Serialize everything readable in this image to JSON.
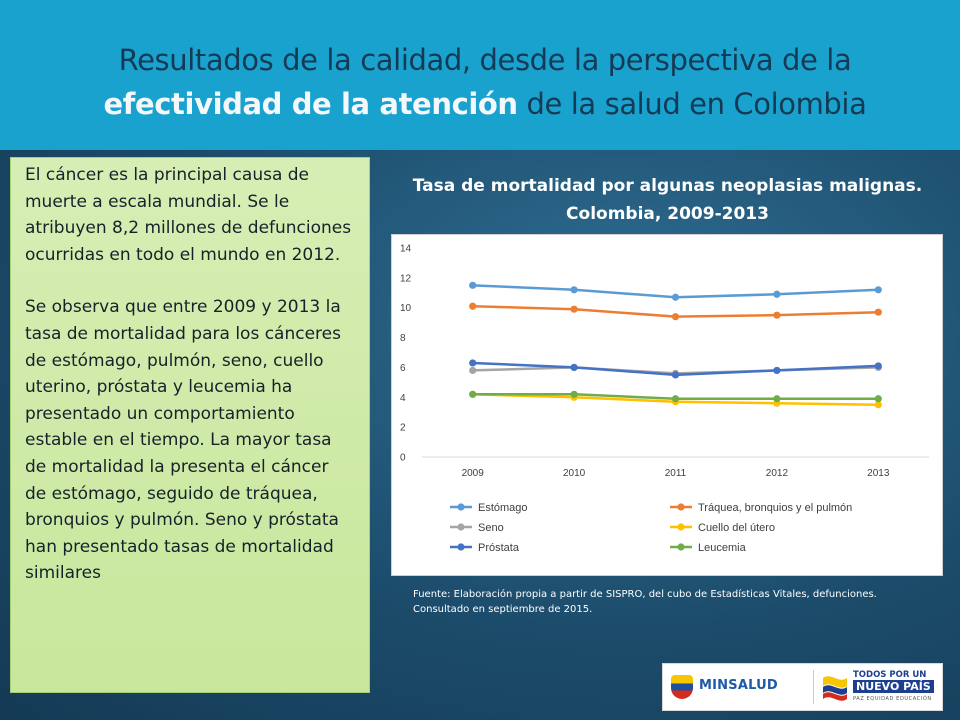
{
  "slide": {
    "title_part1": "Resultados de la calidad, desde la perspectiva de la ",
    "title_highlight": "efectividad de la atención",
    "title_part2": " de la salud en Colombia",
    "paragraph1": "El cáncer es la principal causa de muerte a escala mundial. Se le atribuyen 8,2 millones de defunciones ocurridas en todo el mundo en 2012.",
    "paragraph2": " Se observa que entre 2009 y 2013 la tasa de mortalidad para los cánceres de estómago, pulmón, seno, cuello uterino, próstata y leucemia ha presentado un comportamiento estable en el tiempo. La mayor tasa de mortalidad la presenta el cáncer de estómago, seguido de tráquea, bronquios y pulmón. Seno y próstata han presentado tasas de mortalidad similares",
    "chart_title_line1": "Tasa de mortalidad por algunas neoplasias malignas.",
    "chart_title_line2": "Colombia, 2009-2013",
    "source_line1": "Fuente: Elaboración propia a partir de SISPRO, del cubo de Estadísticas Vitales, defunciones.",
    "source_line2": "Consultado en septiembre de 2015."
  },
  "logos": {
    "minsalud": "MINSALUD",
    "todos_line1": "TODOS POR UN",
    "todos_line2": "NUEVO PAÍS",
    "todos_line3": "PAZ  EQUIDAD  EDUCACIÓN"
  },
  "chart_data": {
    "type": "line",
    "title": "Tasa de mortalidad por algunas neoplasias malignas. Colombia, 2009-2013",
    "x": [
      "2009",
      "2010",
      "2011",
      "2012",
      "2013"
    ],
    "ylim": [
      0,
      14
    ],
    "yticks": [
      0,
      2,
      4,
      6,
      8,
      10,
      12,
      14
    ],
    "grid": false,
    "legend_position": "bottom",
    "series": [
      {
        "name": "Estómago",
        "color": "#5b9bd5",
        "values": [
          11.5,
          11.2,
          10.7,
          10.9,
          11.2
        ]
      },
      {
        "name": "Tráquea, bronquios y el pulmón",
        "color": "#ed7d31",
        "values": [
          10.1,
          9.9,
          9.4,
          9.5,
          9.7
        ]
      },
      {
        "name": "Seno",
        "color": "#a5a5a5",
        "values": [
          5.8,
          6.0,
          5.6,
          5.8,
          6.0
        ]
      },
      {
        "name": "Cuello del útero",
        "color": "#ffc000",
        "values": [
          4.2,
          4.0,
          3.7,
          3.6,
          3.5
        ]
      },
      {
        "name": "Próstata",
        "color": "#4472c4",
        "values": [
          6.3,
          6.0,
          5.5,
          5.8,
          6.1
        ]
      },
      {
        "name": "Leucemia",
        "color": "#70ad47",
        "values": [
          4.2,
          4.2,
          3.9,
          3.9,
          3.9
        ]
      }
    ]
  }
}
